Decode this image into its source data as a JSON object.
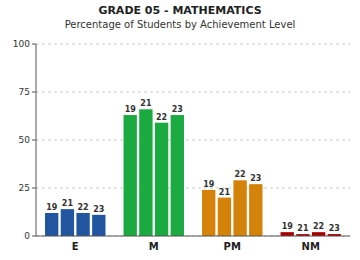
{
  "chart_data": {
    "type": "bar",
    "title": "GRADE 05 - MATHEMATICS",
    "subtitle": "Percentage of Students by Achievement Level",
    "categories": [
      "E",
      "M",
      "PM",
      "NM"
    ],
    "series": [
      {
        "name": "19",
        "values": [
          12,
          63,
          24,
          2
        ]
      },
      {
        "name": "21",
        "values": [
          14,
          66,
          20,
          1
        ]
      },
      {
        "name": "22",
        "values": [
          12,
          59,
          29,
          2
        ]
      },
      {
        "name": "23",
        "values": [
          11,
          63,
          27,
          1
        ]
      }
    ],
    "colors": [
      "#2255a0",
      "#1aaa40",
      "#d4820a",
      "#aa0000"
    ],
    "ylim": [
      0,
      100
    ],
    "yticks": [
      0,
      25,
      50,
      75,
      100
    ],
    "grid": true
  }
}
